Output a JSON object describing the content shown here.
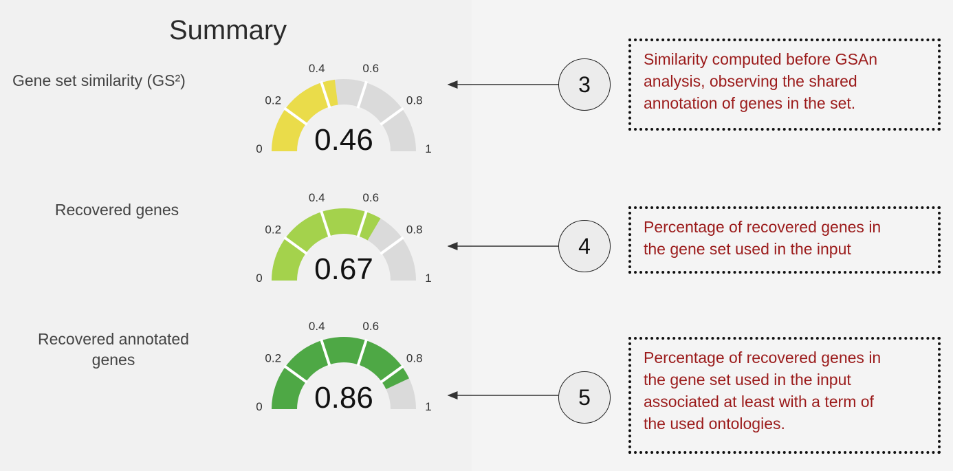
{
  "title": "Summary",
  "colors": {
    "unfilled": "#dadada",
    "yellow": "#eadc4a",
    "lightgreen": "#a4d24c",
    "green": "#4ea845",
    "note_text": "#9b1b1b"
  },
  "gauges": [
    {
      "label": "Gene set similarity (GS²)",
      "value": 0.46,
      "value_text": "0.46",
      "fill_color": "#eadc4a",
      "ticks": [
        "0",
        "0.2",
        "0.4",
        "0.6",
        "0.8",
        "1"
      ],
      "step": "3",
      "note": "Similarity computed before GSAn\nanalysis, observing the shared\nannotation of genes in the set."
    },
    {
      "label": "Recovered genes",
      "value": 0.67,
      "value_text": "0.67",
      "fill_color": "#a4d24c",
      "ticks": [
        "0",
        "0.2",
        "0.4",
        "0.6",
        "0.8",
        "1"
      ],
      "step": "4",
      "note": "Percentage of recovered genes in\nthe gene set  used in the input"
    },
    {
      "label": "Recovered annotated\ngenes",
      "value": 0.86,
      "value_text": "0.86",
      "fill_color": "#4ea845",
      "ticks": [
        "0",
        "0.2",
        "0.4",
        "0.6",
        "0.8",
        "1"
      ],
      "step": "5",
      "note": "Percentage of recovered genes in\nthe gene set  used in the input\nassociated at least with a term of\nthe used ontologies."
    }
  ]
}
